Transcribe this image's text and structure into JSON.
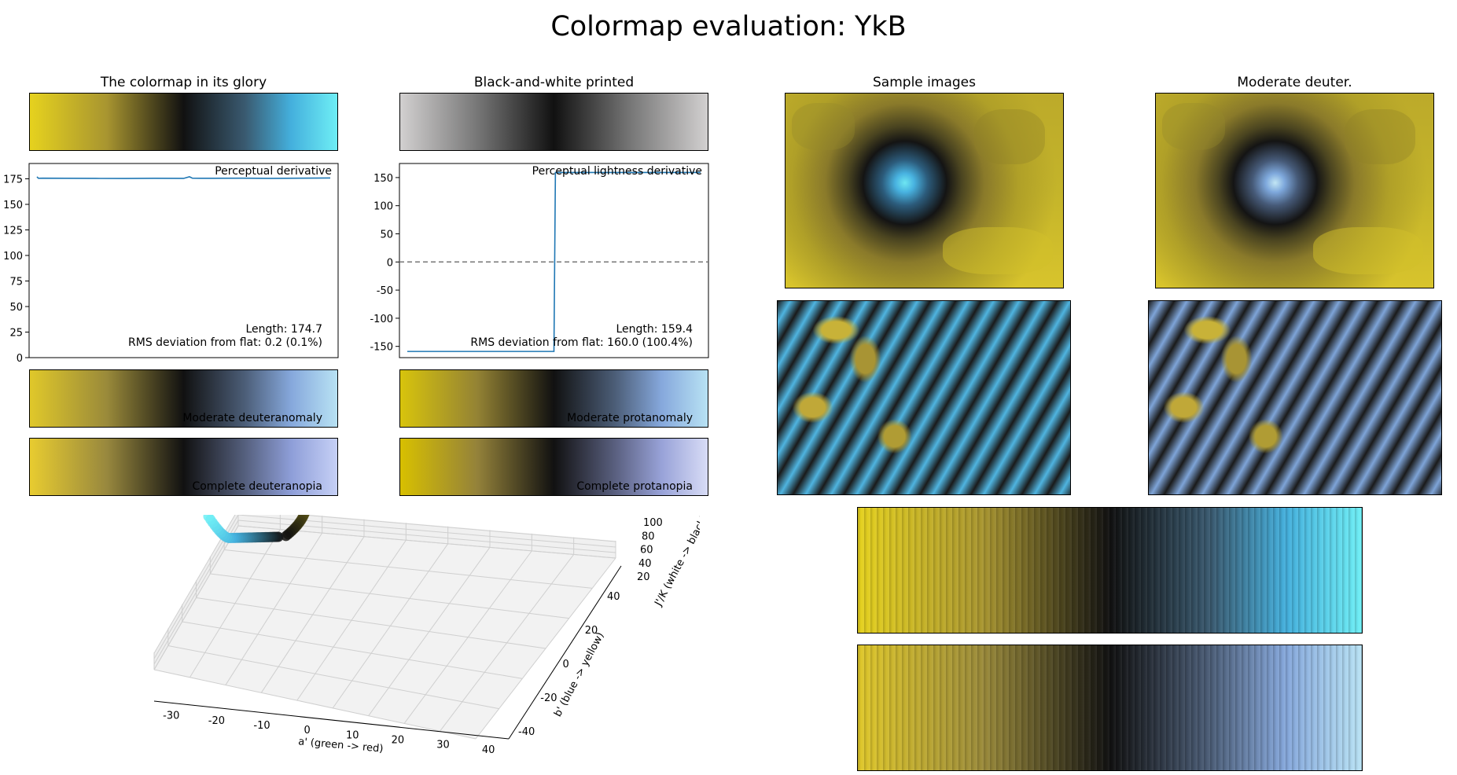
{
  "figure": {
    "title": "Colormap evaluation: YkB"
  },
  "colors": {
    "yellow": "#e6d21e",
    "black": "#111111",
    "cyan": "#6eeef5",
    "deuter_end": "#b8e2f4",
    "deutan_end": "#c6d0f6",
    "prot_end": "#d8dcf6",
    "line": "#1f77b4"
  },
  "panels": {
    "glory_title": "The colormap in its glory",
    "bw_title": "Black-and-white printed",
    "sample_title": "Sample images",
    "deuter_title": "Moderate deuter.",
    "deuteranomaly_label": "Moderate deuteranomaly",
    "deuteranopia_label": "Complete deuteranopia",
    "protanomaly_label": "Moderate protanomaly",
    "protanopia_label": "Complete protanopia"
  },
  "chart_data": [
    {
      "type": "line",
      "title": "Perceptual derivative",
      "x": [
        0,
        0.005,
        0.02,
        0.1,
        0.2,
        0.3,
        0.4,
        0.5,
        0.52,
        0.53,
        0.6,
        0.7,
        0.8,
        0.9,
        1.0
      ],
      "series": [
        {
          "values": [
            177,
            175.5,
            175.6,
            175.5,
            175.4,
            175.3,
            175.5,
            175.4,
            177,
            175.6,
            175.5,
            175.6,
            175.4,
            175.6,
            175.8
          ]
        }
      ],
      "ylim": [
        0,
        190
      ],
      "yticks": [
        0,
        25,
        50,
        75,
        100,
        125,
        150,
        175
      ],
      "annotations": [
        "Length: 174.7",
        "RMS deviation from flat: 0.2 (0.1%)"
      ]
    },
    {
      "type": "line",
      "title": "Perceptual lightness derivative",
      "x": [
        0,
        0.49,
        0.5,
        0.505,
        1.0
      ],
      "series": [
        {
          "values": [
            -159,
            -159,
            -159,
            159,
            159
          ]
        }
      ],
      "reference_line": 0,
      "ylim": [
        -170,
        175
      ],
      "yticks": [
        -150,
        -100,
        -50,
        0,
        50,
        100,
        150
      ],
      "annotations": [
        "Length: 159.4",
        "RMS deviation from flat: 160.0 (100.4%)"
      ]
    },
    {
      "type": "scatter",
      "dimensions": 3,
      "xlabel": "a' (green -> red)",
      "ylabel": "b' (blue -> yellow)",
      "zlabel": "J'/K (white -> black)",
      "xticks": [
        -30,
        -20,
        -10,
        0,
        10,
        20,
        30,
        40
      ],
      "yticks": [
        -40,
        -20,
        0,
        20,
        40
      ],
      "zticks": [
        20,
        40,
        60,
        80,
        100
      ],
      "grid": true
    }
  ]
}
